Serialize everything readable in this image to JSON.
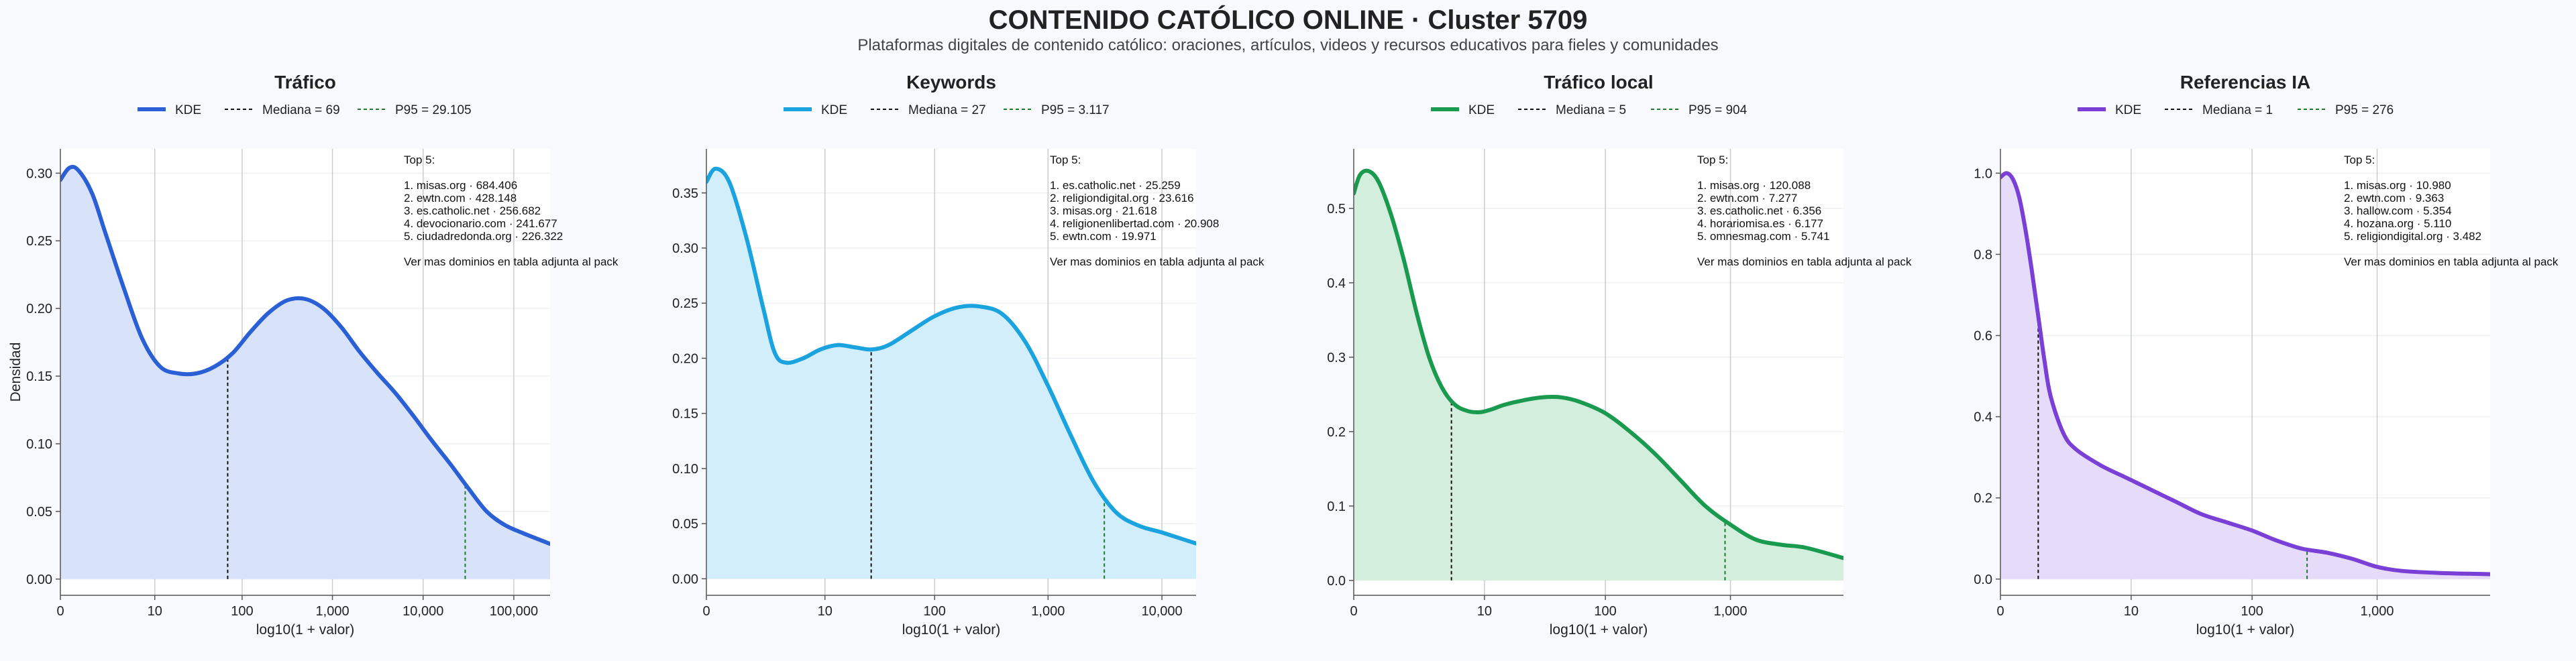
{
  "title": "CONTENIDO CATÓLICO ONLINE · Cluster 5709",
  "subtitle": "Plataformas digitales de contenido católico: oraciones, artículos, videos y recursos educativos para fieles y comunidades",
  "shared": {
    "ylabel": "Densidad",
    "xlabel": "log10(1 + valor)",
    "legend_kde": "KDE",
    "footnote": "Ver mas dominios en tabla adjunta al pack",
    "top_title": "Top 5:"
  },
  "chart_data": [
    {
      "type": "area",
      "panel_title": "Tráfico",
      "color": "#2a5fd6",
      "fill": "#d8e3f9",
      "xlim": [
        0,
        5.4
      ],
      "ylim": [
        -0.012,
        0.318
      ],
      "x_ticks": [
        {
          "v": 0,
          "label": "0"
        },
        {
          "v": 1.041,
          "label": "10"
        },
        {
          "v": 2.004,
          "label": "100"
        },
        {
          "v": 3.0,
          "label": "1,000"
        },
        {
          "v": 4.0,
          "label": "10,000"
        },
        {
          "v": 5.0,
          "label": "100,000"
        }
      ],
      "y_ticks": [
        {
          "v": 0.0,
          "label": "0.00"
        },
        {
          "v": 0.05,
          "label": "0.05"
        },
        {
          "v": 0.1,
          "label": "0.10"
        },
        {
          "v": 0.15,
          "label": "0.15"
        },
        {
          "v": 0.2,
          "label": "0.20"
        },
        {
          "v": 0.25,
          "label": "0.25"
        },
        {
          "v": 0.3,
          "label": "0.30"
        }
      ],
      "curve": [
        [
          0,
          0.295
        ],
        [
          0.1,
          0.304
        ],
        [
          0.2,
          0.302
        ],
        [
          0.35,
          0.285
        ],
        [
          0.5,
          0.255
        ],
        [
          0.7,
          0.215
        ],
        [
          0.9,
          0.178
        ],
        [
          1.1,
          0.157
        ],
        [
          1.3,
          0.152
        ],
        [
          1.5,
          0.152
        ],
        [
          1.7,
          0.157
        ],
        [
          1.9,
          0.167
        ],
        [
          2.1,
          0.183
        ],
        [
          2.3,
          0.197
        ],
        [
          2.5,
          0.206
        ],
        [
          2.7,
          0.207
        ],
        [
          2.9,
          0.2
        ],
        [
          3.1,
          0.186
        ],
        [
          3.3,
          0.168
        ],
        [
          3.5,
          0.152
        ],
        [
          3.7,
          0.137
        ],
        [
          3.9,
          0.12
        ],
        [
          4.1,
          0.102
        ],
        [
          4.3,
          0.085
        ],
        [
          4.5,
          0.067
        ],
        [
          4.7,
          0.05
        ],
        [
          4.9,
          0.04
        ],
        [
          5.1,
          0.034
        ],
        [
          5.4,
          0.026
        ]
      ],
      "median": {
        "label": "Mediana = 69",
        "x": 1.845
      },
      "p95": {
        "label": "P95 = 29.105",
        "x": 4.464
      },
      "top5": [
        "1. misas.org · 684.406",
        "2. ewtn.com · 428.148",
        "3. es.catholic.net · 256.682",
        "4. devocionario.com · 241.677",
        "5. ciudadredonda.org · 226.322"
      ]
    },
    {
      "type": "area",
      "panel_title": "Keywords",
      "color": "#1aa3de",
      "fill": "#d2eefa",
      "xlim": [
        0,
        4.3
      ],
      "ylim": [
        -0.015,
        0.39
      ],
      "x_ticks": [
        {
          "v": 0,
          "label": "0"
        },
        {
          "v": 1.041,
          "label": "10"
        },
        {
          "v": 2.004,
          "label": "100"
        },
        {
          "v": 3.0,
          "label": "1,000"
        },
        {
          "v": 4.0,
          "label": "10,000"
        }
      ],
      "y_ticks": [
        {
          "v": 0.0,
          "label": "0.00"
        },
        {
          "v": 0.05,
          "label": "0.05"
        },
        {
          "v": 0.1,
          "label": "0.10"
        },
        {
          "v": 0.15,
          "label": "0.15"
        },
        {
          "v": 0.2,
          "label": "0.20"
        },
        {
          "v": 0.25,
          "label": "0.25"
        },
        {
          "v": 0.3,
          "label": "0.30"
        },
        {
          "v": 0.35,
          "label": "0.35"
        }
      ],
      "curve": [
        [
          0,
          0.36
        ],
        [
          0.08,
          0.372
        ],
        [
          0.2,
          0.36
        ],
        [
          0.35,
          0.31
        ],
        [
          0.5,
          0.245
        ],
        [
          0.6,
          0.205
        ],
        [
          0.7,
          0.196
        ],
        [
          0.85,
          0.2
        ],
        [
          1.0,
          0.208
        ],
        [
          1.15,
          0.212
        ],
        [
          1.3,
          0.21
        ],
        [
          1.45,
          0.208
        ],
        [
          1.6,
          0.212
        ],
        [
          1.8,
          0.225
        ],
        [
          2.0,
          0.238
        ],
        [
          2.2,
          0.246
        ],
        [
          2.4,
          0.247
        ],
        [
          2.6,
          0.24
        ],
        [
          2.8,
          0.215
        ],
        [
          3.0,
          0.175
        ],
        [
          3.2,
          0.13
        ],
        [
          3.4,
          0.088
        ],
        [
          3.6,
          0.06
        ],
        [
          3.8,
          0.048
        ],
        [
          4.0,
          0.042
        ],
        [
          4.3,
          0.032
        ]
      ],
      "median": {
        "label": "Mediana = 27",
        "x": 1.447
      },
      "p95": {
        "label": "P95 = 3.117",
        "x": 3.494
      },
      "top5": [
        "1. es.catholic.net · 25.259",
        "2. religiondigital.org · 23.616",
        "3. misas.org · 21.618",
        "4. religionenlibertad.com · 20.908",
        "5. ewtn.com · 19.971"
      ]
    },
    {
      "type": "area",
      "panel_title": "Tráfico local",
      "color": "#1a9a4f",
      "fill": "#d3eedd",
      "xlim": [
        0,
        3.9
      ],
      "ylim": [
        -0.02,
        0.58
      ],
      "x_ticks": [
        {
          "v": 0,
          "label": "0"
        },
        {
          "v": 1.041,
          "label": "10"
        },
        {
          "v": 2.004,
          "label": "100"
        },
        {
          "v": 3.0,
          "label": "1,000"
        }
      ],
      "y_ticks": [
        {
          "v": 0.0,
          "label": "0.0"
        },
        {
          "v": 0.1,
          "label": "0.1"
        },
        {
          "v": 0.2,
          "label": "0.2"
        },
        {
          "v": 0.3,
          "label": "0.3"
        },
        {
          "v": 0.4,
          "label": "0.4"
        },
        {
          "v": 0.5,
          "label": "0.5"
        }
      ],
      "curve": [
        [
          0,
          0.52
        ],
        [
          0.05,
          0.545
        ],
        [
          0.12,
          0.55
        ],
        [
          0.2,
          0.535
        ],
        [
          0.3,
          0.49
        ],
        [
          0.4,
          0.43
        ],
        [
          0.5,
          0.36
        ],
        [
          0.6,
          0.3
        ],
        [
          0.7,
          0.26
        ],
        [
          0.8,
          0.237
        ],
        [
          0.9,
          0.228
        ],
        [
          1.0,
          0.226
        ],
        [
          1.1,
          0.23
        ],
        [
          1.2,
          0.236
        ],
        [
          1.35,
          0.242
        ],
        [
          1.5,
          0.246
        ],
        [
          1.65,
          0.246
        ],
        [
          1.8,
          0.24
        ],
        [
          2.0,
          0.225
        ],
        [
          2.2,
          0.2
        ],
        [
          2.4,
          0.17
        ],
        [
          2.6,
          0.135
        ],
        [
          2.8,
          0.1
        ],
        [
          3.0,
          0.075
        ],
        [
          3.2,
          0.055
        ],
        [
          3.4,
          0.048
        ],
        [
          3.6,
          0.044
        ],
        [
          3.9,
          0.03
        ]
      ],
      "median": {
        "label": "Mediana = 5",
        "x": 0.778
      },
      "p95": {
        "label": "P95 = 904",
        "x": 2.957
      },
      "top5": [
        "1. misas.org · 120.088",
        "2. ewtn.com · 7.277",
        "3. es.catholic.net · 6.356",
        "4. horariomisa.es · 6.177",
        "5. omnesmag.com · 5.741"
      ]
    },
    {
      "type": "area",
      "panel_title": "Referencias IA",
      "color": "#7a3fd6",
      "fill": "#e6dbf8",
      "xlim": [
        0,
        3.9
      ],
      "ylim": [
        -0.04,
        1.06
      ],
      "x_ticks": [
        {
          "v": 0,
          "label": "0"
        },
        {
          "v": 1.041,
          "label": "10"
        },
        {
          "v": 2.004,
          "label": "100"
        },
        {
          "v": 3.0,
          "label": "1,000"
        }
      ],
      "y_ticks": [
        {
          "v": 0.0,
          "label": "0.0"
        },
        {
          "v": 0.2,
          "label": "0.2"
        },
        {
          "v": 0.4,
          "label": "0.4"
        },
        {
          "v": 0.6,
          "label": "0.6"
        },
        {
          "v": 0.8,
          "label": "0.8"
        },
        {
          "v": 1.0,
          "label": "1.0"
        }
      ],
      "curve": [
        [
          0,
          0.99
        ],
        [
          0.05,
          1.0
        ],
        [
          0.1,
          0.985
        ],
        [
          0.15,
          0.94
        ],
        [
          0.2,
          0.86
        ],
        [
          0.25,
          0.76
        ],
        [
          0.3,
          0.65
        ],
        [
          0.35,
          0.54
        ],
        [
          0.4,
          0.45
        ],
        [
          0.5,
          0.36
        ],
        [
          0.6,
          0.32
        ],
        [
          0.8,
          0.28
        ],
        [
          1.0,
          0.25
        ],
        [
          1.2,
          0.22
        ],
        [
          1.4,
          0.19
        ],
        [
          1.6,
          0.16
        ],
        [
          1.8,
          0.14
        ],
        [
          2.0,
          0.12
        ],
        [
          2.2,
          0.095
        ],
        [
          2.4,
          0.075
        ],
        [
          2.6,
          0.065
        ],
        [
          2.8,
          0.05
        ],
        [
          3.0,
          0.03
        ],
        [
          3.2,
          0.02
        ],
        [
          3.5,
          0.015
        ],
        [
          3.9,
          0.012
        ]
      ],
      "median": {
        "label": "Mediana = 1",
        "x": 0.301
      },
      "p95": {
        "label": "P95 = 276",
        "x": 2.442
      },
      "top5": [
        "1. misas.org · 10.980",
        "2. ewtn.com · 9.363",
        "3. hallow.com · 5.354",
        "4. hozana.org · 5.110",
        "5. religiondigital.org · 3.482"
      ]
    }
  ]
}
